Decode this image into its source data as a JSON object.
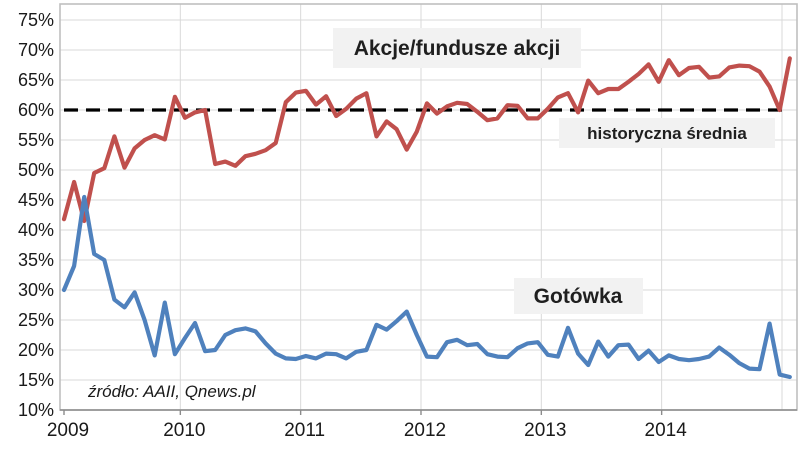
{
  "chart": {
    "series1_label": "Akcje/fundusze akcji",
    "series2_label": "Gotówka",
    "reference_label": "historyczna średnia",
    "source_note": "źródło: AAII, Qnews.pl",
    "y_tick_suffix": "%",
    "colors": {
      "equities": "#C0504D",
      "cash": "#4F81BD",
      "reference": "#000000",
      "grid": "#D9D9D9",
      "axis": "#8C8C8C",
      "plot_border": "#BFBFBF",
      "label_box_bg": "#F2F2F2",
      "text": "#1A1A1A"
    }
  },
  "chart_data": {
    "type": "line",
    "title": "",
    "xlabel": "",
    "ylabel": "",
    "grid": true,
    "legend_position": "inline-labels",
    "ylim": [
      10,
      75
    ],
    "y_tick_step": 5,
    "y_ticks": [
      10,
      15,
      20,
      25,
      30,
      35,
      40,
      45,
      50,
      55,
      60,
      65,
      70,
      75
    ],
    "x_tick_labels": [
      "2009",
      "2010",
      "2011",
      "2012",
      "2013",
      "2014"
    ],
    "x_unit": "month",
    "months": [
      "2009-01",
      "2009-02",
      "2009-03",
      "2009-04",
      "2009-05",
      "2009-06",
      "2009-07",
      "2009-08",
      "2009-09",
      "2009-10",
      "2009-11",
      "2009-12",
      "2010-01",
      "2010-02",
      "2010-03",
      "2010-04",
      "2010-05",
      "2010-06",
      "2010-07",
      "2010-08",
      "2010-09",
      "2010-10",
      "2010-11",
      "2010-12",
      "2011-01",
      "2011-02",
      "2011-03",
      "2011-04",
      "2011-05",
      "2011-06",
      "2011-07",
      "2011-08",
      "2011-09",
      "2011-10",
      "2011-11",
      "2011-12",
      "2012-01",
      "2012-02",
      "2012-03",
      "2012-04",
      "2012-05",
      "2012-06",
      "2012-07",
      "2012-08",
      "2012-09",
      "2012-10",
      "2012-11",
      "2012-12",
      "2013-01",
      "2013-02",
      "2013-03",
      "2013-04",
      "2013-05",
      "2013-06",
      "2013-07",
      "2013-08",
      "2013-09",
      "2013-10",
      "2013-11",
      "2013-12",
      "2014-01",
      "2014-02",
      "2014-03",
      "2014-04",
      "2014-05",
      "2014-06",
      "2014-07",
      "2014-08",
      "2014-09",
      "2014-10",
      "2014-11",
      "2014-12",
      "2015-01"
    ],
    "series": [
      {
        "name": "Akcje/fundusze akcji",
        "color": "#C0504D",
        "unit": "%",
        "values": [
          41.8,
          48.0,
          41.5,
          49.5,
          50.3,
          55.6,
          50.4,
          53.6,
          55.0,
          55.8,
          55.1,
          62.2,
          58.7,
          59.6,
          60.0,
          51.0,
          51.4,
          50.7,
          52.3,
          52.7,
          53.3,
          54.5,
          61.3,
          62.9,
          63.2,
          60.9,
          62.3,
          59.0,
          60.2,
          61.9,
          62.8,
          55.6,
          58.1,
          56.8,
          53.4,
          56.4,
          61.1,
          59.4,
          60.6,
          61.2,
          61.0,
          59.7,
          58.3,
          58.6,
          60.8,
          60.7,
          58.6,
          58.6,
          60.2,
          62.1,
          62.8,
          59.6,
          64.9,
          62.8,
          63.5,
          63.5,
          64.7,
          66.0,
          67.6,
          64.7,
          68.3,
          65.8,
          67.0,
          67.2,
          65.4,
          65.6,
          67.1,
          67.4,
          67.3,
          66.4,
          63.9,
          60.0,
          68.6
        ]
      },
      {
        "name": "Gotówka",
        "color": "#4F81BD",
        "unit": "%",
        "values": [
          30.0,
          34.0,
          45.5,
          36.0,
          35.0,
          28.4,
          27.1,
          29.6,
          25.0,
          19.1,
          27.9,
          19.3,
          22.0,
          24.5,
          19.8,
          20.0,
          22.5,
          23.3,
          23.6,
          23.1,
          21.1,
          19.4,
          18.6,
          18.5,
          19.0,
          18.6,
          19.4,
          19.3,
          18.6,
          19.7,
          20.0,
          24.2,
          23.4,
          24.8,
          26.4,
          22.5,
          18.9,
          18.8,
          21.3,
          21.7,
          20.8,
          21.0,
          19.3,
          18.9,
          18.8,
          20.3,
          21.1,
          21.3,
          19.2,
          18.9,
          23.7,
          19.4,
          17.5,
          21.4,
          18.9,
          20.8,
          20.9,
          18.5,
          19.9,
          18.0,
          19.1,
          18.5,
          18.3,
          18.5,
          18.9,
          20.4,
          19.2,
          17.8,
          16.9,
          16.8,
          24.4,
          15.9,
          15.5
        ]
      }
    ],
    "reference_line": {
      "label": "historyczna średnia",
      "value": 60,
      "style": "dashed",
      "color": "#000000"
    },
    "annotations": [
      {
        "text": "Akcje/fundusze akcji",
        "style": "boxed-bold"
      },
      {
        "text": "historyczna średnia",
        "style": "boxed-bold"
      },
      {
        "text": "Gotówka",
        "style": "boxed-bold"
      },
      {
        "text": "źródło: AAII, Qnews.pl",
        "style": "italic"
      }
    ]
  }
}
